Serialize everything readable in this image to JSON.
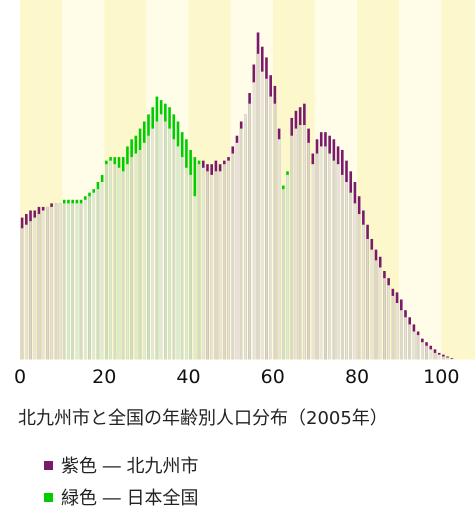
{
  "chart_data": {
    "type": "bar",
    "title": "北九州市と全国の年齢別人口分布（2005年）",
    "x_ticks": [
      "0",
      "20",
      "40",
      "60",
      "80",
      "100"
    ],
    "xlim": [
      0,
      108
    ],
    "ylim": [
      0,
      1.0
    ],
    "grid": false,
    "background_bands": "alternating 10-year columns",
    "legend_placement": "bottom-left",
    "ages": [
      0,
      1,
      2,
      3,
      4,
      5,
      6,
      7,
      8,
      9,
      10,
      11,
      12,
      13,
      14,
      15,
      16,
      17,
      18,
      19,
      20,
      21,
      22,
      23,
      24,
      25,
      26,
      27,
      28,
      29,
      30,
      31,
      32,
      33,
      34,
      35,
      36,
      37,
      38,
      39,
      40,
      41,
      42,
      43,
      44,
      45,
      46,
      47,
      48,
      49,
      50,
      51,
      52,
      53,
      54,
      55,
      56,
      57,
      58,
      59,
      60,
      61,
      62,
      63,
      64,
      65,
      66,
      67,
      68,
      69,
      70,
      71,
      72,
      73,
      74,
      75,
      76,
      77,
      78,
      79,
      80,
      81,
      82,
      83,
      84,
      85,
      86,
      87,
      88,
      89,
      90,
      91,
      92,
      93,
      94,
      95,
      96,
      97,
      98,
      99,
      100,
      101,
      102
    ],
    "series": [
      {
        "name": "北九州市",
        "legend_label": "紫色 ― 北九州市",
        "color": "#7a1a6a",
        "values": [
          0.4,
          0.41,
          0.42,
          0.42,
          0.43,
          0.43,
          0.43,
          0.44,
          0.44,
          0.44,
          0.44,
          0.44,
          0.44,
          0.44,
          0.44,
          0.45,
          0.46,
          0.47,
          0.48,
          0.5,
          0.55,
          0.56,
          0.55,
          0.54,
          0.53,
          0.55,
          0.57,
          0.58,
          0.59,
          0.61,
          0.63,
          0.65,
          0.67,
          0.69,
          0.67,
          0.65,
          0.62,
          0.6,
          0.57,
          0.54,
          0.52,
          0.46,
          0.55,
          0.56,
          0.55,
          0.55,
          0.56,
          0.55,
          0.56,
          0.57,
          0.6,
          0.63,
          0.67,
          0.69,
          0.75,
          0.83,
          0.92,
          0.88,
          0.85,
          0.8,
          0.77,
          0.65,
          0.48,
          0.52,
          0.68,
          0.7,
          0.71,
          0.72,
          0.65,
          0.58,
          0.62,
          0.64,
          0.64,
          0.63,
          0.62,
          0.6,
          0.59,
          0.56,
          0.53,
          0.5,
          0.46,
          0.42,
          0.38,
          0.34,
          0.31,
          0.29,
          0.25,
          0.23,
          0.2,
          0.19,
          0.17,
          0.14,
          0.12,
          0.1,
          0.08,
          0.06,
          0.05,
          0.04,
          0.03,
          0.02,
          0.015,
          0.01,
          0.005
        ]
      },
      {
        "name": "日本全国",
        "legend_label": "緑色 ― 日本全国",
        "color": "#00cc00",
        "values": [
          0.37,
          0.38,
          0.39,
          0.4,
          0.41,
          0.42,
          0.43,
          0.43,
          0.44,
          0.44,
          0.45,
          0.45,
          0.45,
          0.45,
          0.45,
          0.46,
          0.47,
          0.48,
          0.5,
          0.52,
          0.56,
          0.57,
          0.57,
          0.57,
          0.57,
          0.6,
          0.62,
          0.63,
          0.65,
          0.67,
          0.69,
          0.71,
          0.74,
          0.73,
          0.72,
          0.71,
          0.69,
          0.67,
          0.64,
          0.62,
          0.59,
          0.57,
          0.56,
          0.54,
          0.53,
          0.52,
          0.53,
          0.53,
          0.55,
          0.56,
          0.58,
          0.61,
          0.65,
          0.69,
          0.72,
          0.78,
          0.86,
          0.81,
          0.79,
          0.74,
          0.72,
          0.62,
          0.49,
          0.53,
          0.63,
          0.65,
          0.66,
          0.66,
          0.61,
          0.55,
          0.58,
          0.6,
          0.6,
          0.58,
          0.56,
          0.55,
          0.52,
          0.5,
          0.47,
          0.44,
          0.41,
          0.38,
          0.34,
          0.31,
          0.28,
          0.26,
          0.23,
          0.21,
          0.18,
          0.16,
          0.14,
          0.12,
          0.1,
          0.08,
          0.07,
          0.05,
          0.04,
          0.03,
          0.02,
          0.015,
          0.01,
          0.007,
          0.003
        ]
      }
    ]
  },
  "legend": {
    "items": [
      {
        "label": "紫色 ― 北九州市",
        "color": "#7a1a6a"
      },
      {
        "label": "緑色 ― 日本全国",
        "color": "#00cc00"
      }
    ]
  }
}
